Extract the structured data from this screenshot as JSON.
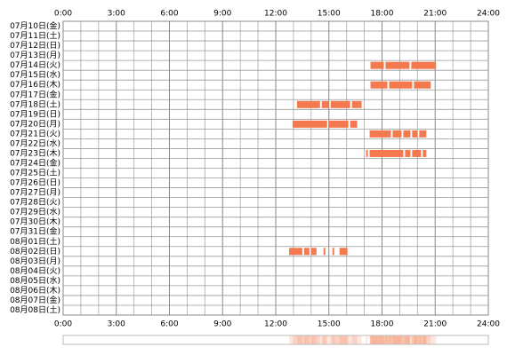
{
  "chart_data": {
    "type": "timeline",
    "xlim": [
      0,
      24
    ],
    "xticks": [
      {
        "value": 0,
        "label": "0:00"
      },
      {
        "value": 3,
        "label": "3:00"
      },
      {
        "value": 6,
        "label": "6:00"
      },
      {
        "value": 9,
        "label": "9:00"
      },
      {
        "value": 12,
        "label": "12:00"
      },
      {
        "value": 15,
        "label": "15:00"
      },
      {
        "value": 18,
        "label": "18:00"
      },
      {
        "value": 21,
        "label": "21:00"
      },
      {
        "value": 24,
        "label": "24:00"
      }
    ],
    "xgrid_minor": [
      1,
      2,
      4,
      5,
      7,
      8,
      10,
      11,
      13,
      14,
      16,
      17,
      19,
      20,
      22,
      23
    ],
    "color": "#f4794f",
    "rows": [
      {
        "label": "07月10日(金)",
        "intervals": []
      },
      {
        "label": "07月11日(土)",
        "intervals": []
      },
      {
        "label": "07月12日(日)",
        "intervals": []
      },
      {
        "label": "07月13日(月)",
        "intervals": []
      },
      {
        "label": "07月14日(火)",
        "intervals": [
          [
            17.35,
            18.1
          ],
          [
            18.2,
            19.55
          ],
          [
            19.65,
            21.05
          ]
        ]
      },
      {
        "label": "07月15日(水)",
        "intervals": []
      },
      {
        "label": "07月16日(木)",
        "intervals": [
          [
            17.35,
            18.3
          ],
          [
            18.4,
            19.7
          ],
          [
            19.8,
            20.75
          ]
        ]
      },
      {
        "label": "07月17日(金)",
        "intervals": []
      },
      {
        "label": "07月18日(土)",
        "intervals": [
          [
            13.2,
            14.5
          ],
          [
            14.6,
            15.0
          ],
          [
            15.1,
            16.2
          ],
          [
            16.3,
            16.85
          ]
        ]
      },
      {
        "label": "07月19日(日)",
        "intervals": []
      },
      {
        "label": "07月20日(月)",
        "intervals": [
          [
            12.95,
            14.9
          ],
          [
            15.0,
            16.1
          ],
          [
            16.2,
            16.6
          ]
        ]
      },
      {
        "label": "07月21日(火)",
        "intervals": [
          [
            17.3,
            18.5
          ],
          [
            18.6,
            19.1
          ],
          [
            19.2,
            19.6
          ],
          [
            19.7,
            20.0
          ],
          [
            20.1,
            20.5
          ]
        ]
      },
      {
        "label": "07月22日(水)",
        "intervals": []
      },
      {
        "label": "07月23日(木)",
        "intervals": [
          [
            17.1,
            17.2
          ],
          [
            17.3,
            19.2
          ],
          [
            19.3,
            19.6
          ],
          [
            19.7,
            20.2
          ],
          [
            20.3,
            20.5
          ]
        ]
      },
      {
        "label": "07月24日(金)",
        "intervals": []
      },
      {
        "label": "07月25日(土)",
        "intervals": []
      },
      {
        "label": "07月26日(日)",
        "intervals": []
      },
      {
        "label": "07月27日(月)",
        "intervals": []
      },
      {
        "label": "07月28日(火)",
        "intervals": []
      },
      {
        "label": "07月29日(水)",
        "intervals": []
      },
      {
        "label": "07月30日(木)",
        "intervals": []
      },
      {
        "label": "07月31日(金)",
        "intervals": []
      },
      {
        "label": "08月01日(土)",
        "intervals": []
      },
      {
        "label": "08月02日(日)",
        "intervals": [
          [
            12.75,
            13.5
          ],
          [
            13.6,
            13.9
          ],
          [
            14.0,
            14.3
          ],
          [
            14.7,
            14.8
          ],
          [
            15.2,
            15.3
          ],
          [
            15.6,
            16.05
          ]
        ]
      },
      {
        "label": "08月03日(月)",
        "intervals": []
      },
      {
        "label": "08月04日(火)",
        "intervals": []
      },
      {
        "label": "08月05日(水)",
        "intervals": []
      },
      {
        "label": "08月06日(木)",
        "intervals": []
      },
      {
        "label": "08月07日(金)",
        "intervals": []
      },
      {
        "label": "08月08日(土)",
        "intervals": []
      }
    ]
  }
}
